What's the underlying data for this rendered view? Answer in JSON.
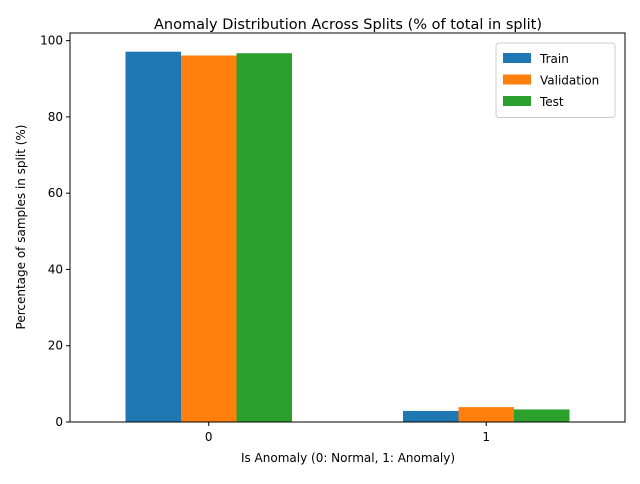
{
  "chart_data": {
    "type": "bar",
    "title": "Anomaly Distribution Across Splits (% of total in split)",
    "xlabel": "Is Anomaly (0: Normal, 1: Anomaly)",
    "ylabel": "Percentage of samples in split (%)",
    "categories": [
      "0",
      "1"
    ],
    "ylim": [
      0,
      102
    ],
    "yticks": [
      0,
      20,
      40,
      60,
      80,
      100
    ],
    "grid": false,
    "legend_position": "top-right",
    "series": [
      {
        "name": "Train",
        "color": "#1f77b4",
        "values": [
          97.1,
          2.9
        ]
      },
      {
        "name": "Validation",
        "color": "#ff7f0e",
        "values": [
          96.1,
          3.9
        ]
      },
      {
        "name": "Test",
        "color": "#2ca02c",
        "values": [
          96.7,
          3.3
        ]
      }
    ]
  }
}
